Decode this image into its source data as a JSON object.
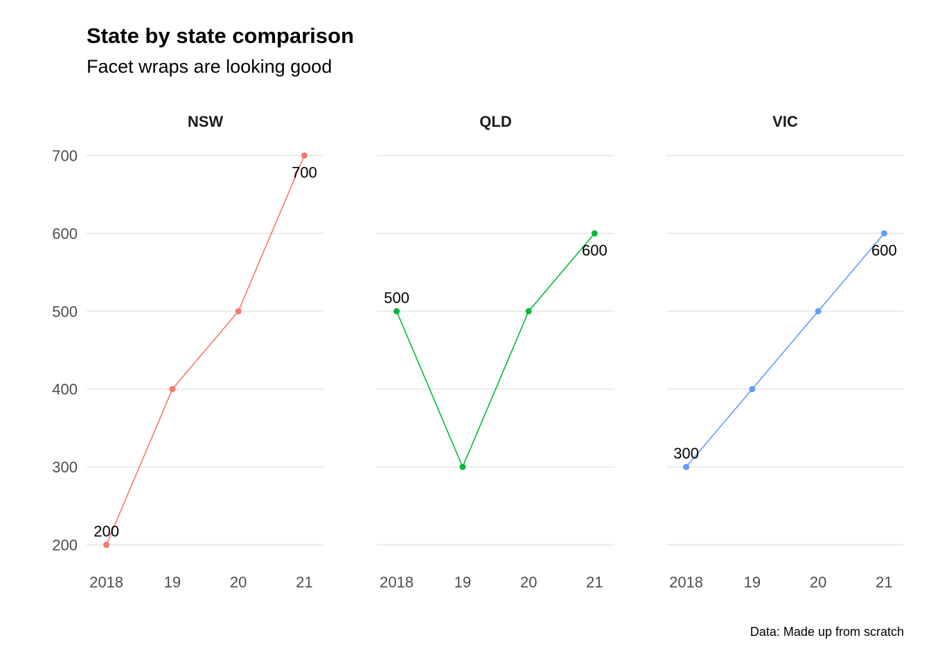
{
  "chart_data": {
    "type": "line",
    "title": "State by state comparison",
    "subtitle": "Facet wraps are looking good",
    "caption": "Data: Made up from scratch",
    "x": [
      2018,
      2019,
      2020,
      2021
    ],
    "x_tick_labels": [
      "2018",
      "19",
      "20",
      "21"
    ],
    "y_ticks": [
      200,
      300,
      400,
      500,
      600,
      700
    ],
    "ylim": [
      180,
      720
    ],
    "xlim": [
      2017.7,
      2021.3
    ],
    "grid": "horizontal-major",
    "legend": "none",
    "panels": [
      {
        "name": "NSW",
        "color": "#F8766D",
        "values": [
          200,
          400,
          500,
          700
        ],
        "labels": [
          {
            "x": 2018,
            "y": 200,
            "text": "200",
            "position": "above"
          },
          {
            "x": 2021,
            "y": 700,
            "text": "700",
            "position": "below"
          }
        ]
      },
      {
        "name": "QLD",
        "color": "#00BA38",
        "values": [
          500,
          300,
          500,
          600
        ],
        "labels": [
          {
            "x": 2018,
            "y": 500,
            "text": "500",
            "position": "above"
          },
          {
            "x": 2021,
            "y": 600,
            "text": "600",
            "position": "below"
          }
        ]
      },
      {
        "name": "VIC",
        "color": "#619CFF",
        "values": [
          300,
          400,
          500,
          600
        ],
        "labels": [
          {
            "x": 2018,
            "y": 300,
            "text": "300",
            "position": "above"
          },
          {
            "x": 2021,
            "y": 600,
            "text": "600",
            "position": "below"
          }
        ]
      }
    ]
  }
}
